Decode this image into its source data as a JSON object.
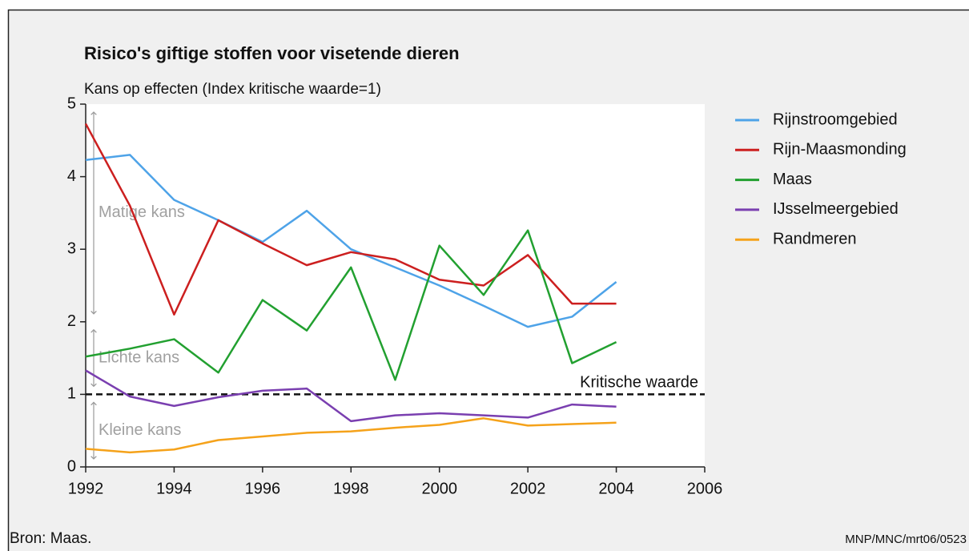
{
  "chart_data": {
    "type": "line",
    "title": "Risico's giftige stoffen voor visetende dieren",
    "ylabel": "Kans op effecten (Index kritische waarde=1)",
    "x": [
      1992,
      1993,
      1994,
      1995,
      1996,
      1997,
      1998,
      1999,
      2000,
      2001,
      2002,
      2003,
      2004
    ],
    "series": [
      {
        "name": "Rijnstroomgebied",
        "color": "#4ea3e8",
        "values": [
          4.23,
          4.3,
          3.68,
          3.4,
          3.1,
          3.53,
          3.0,
          2.75,
          2.5,
          2.22,
          1.93,
          2.07,
          2.55
        ]
      },
      {
        "name": "Rijn-Maasmonding",
        "color": "#cc1f1f",
        "values": [
          4.73,
          3.6,
          2.1,
          3.4,
          3.08,
          2.78,
          2.96,
          2.86,
          2.58,
          2.5,
          2.92,
          2.25,
          2.25
        ]
      },
      {
        "name": "Maas",
        "color": "#22a030",
        "values": [
          1.52,
          1.63,
          1.76,
          1.3,
          2.3,
          1.88,
          2.75,
          1.2,
          3.05,
          2.37,
          3.26,
          1.43,
          1.72
        ]
      },
      {
        "name": "IJsselmeergebied",
        "color": "#7a3fb0",
        "values": [
          1.33,
          0.97,
          0.84,
          0.96,
          1.05,
          1.08,
          0.63,
          0.71,
          0.74,
          0.71,
          0.68,
          0.86,
          0.83
        ]
      },
      {
        "name": "Randmeren",
        "color": "#f5a21a",
        "values": [
          0.25,
          0.2,
          0.24,
          0.37,
          0.42,
          0.47,
          0.49,
          0.54,
          0.58,
          0.67,
          0.57,
          0.59,
          0.61
        ]
      }
    ],
    "xlim": [
      1992,
      2006
    ],
    "xticks": [
      1992,
      1994,
      1996,
      1998,
      2000,
      2002,
      2004,
      2006
    ],
    "ylim": [
      0,
      5
    ],
    "yticks": [
      0,
      1,
      2,
      3,
      4,
      5
    ],
    "grid": false,
    "legend": "right",
    "reference": {
      "value": 1,
      "label": "Kritische waarde"
    },
    "zones": [
      {
        "label": "Matige kans",
        "from": 2,
        "to": 5
      },
      {
        "label": "Lichte kans",
        "from": 1,
        "to": 2
      },
      {
        "label": "Kleine kans",
        "from": 0,
        "to": 1
      }
    ],
    "source": "Bron: Maas.",
    "code": "MNP/MNC/mrt06/0523"
  }
}
